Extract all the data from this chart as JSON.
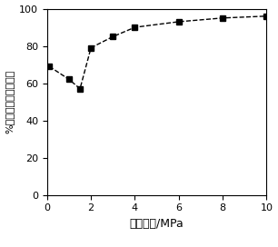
{
  "x": [
    0.1,
    1.0,
    1.5,
    2.0,
    3.0,
    4.0,
    6.0,
    8.0,
    10.0
  ],
  "y": [
    69,
    62,
    57,
    79,
    85,
    90,
    93,
    95,
    96
  ],
  "xlabel": "反应压力/MPa",
  "ylabel_chars": [
    "%",
    "二",
    "正",
    "丁",
    "氧",
    "基",
    "甜",
    "化",
    "用",
    "率"
  ],
  "xlim": [
    0,
    10
  ],
  "ylim": [
    0,
    100
  ],
  "xticks": [
    0,
    2,
    4,
    6,
    8,
    10
  ],
  "yticks": [
    0,
    20,
    40,
    60,
    80,
    100
  ],
  "line_color": "#000000",
  "marker": "s",
  "marker_size": 4,
  "line_style": "--",
  "background_color": "#ffffff",
  "tick_fontsize": 8,
  "xlabel_fontsize": 9
}
